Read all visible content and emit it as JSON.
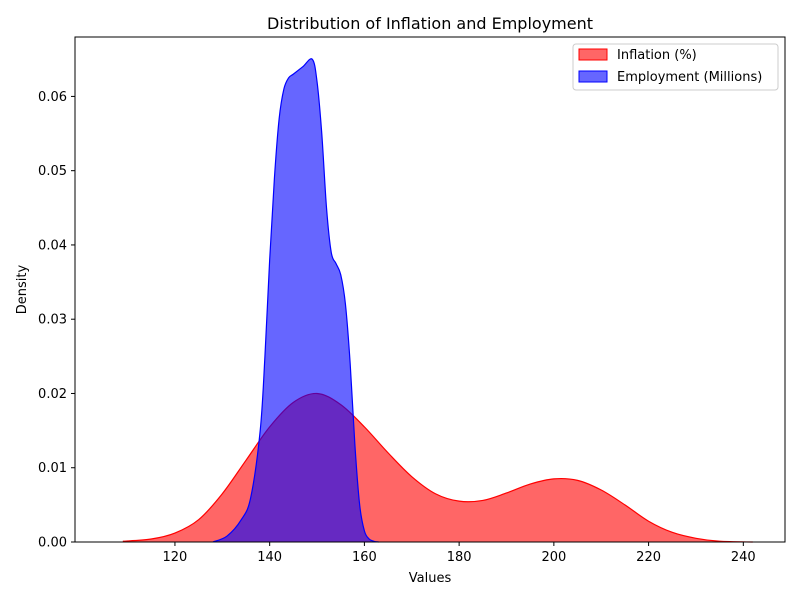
{
  "chart_data": {
    "type": "area",
    "title": "Distribution of Inflation and Employment",
    "xlabel": "Values",
    "ylabel": "Density",
    "xlim": [
      98.9,
      248.8
    ],
    "ylim": [
      0,
      0.068
    ],
    "xticks": [
      120,
      140,
      160,
      180,
      200,
      220,
      240
    ],
    "yticks": [
      0.0,
      0.01,
      0.02,
      0.03,
      0.04,
      0.05,
      0.06
    ],
    "grid": false,
    "legend_position": "top-right",
    "series": [
      {
        "name": "Inflation (%)",
        "color": "#ff0000",
        "fill_opacity": 0.6,
        "x": [
          109,
          115,
          120,
          125,
          130,
          135,
          140,
          145,
          150,
          155,
          160,
          165,
          170,
          175,
          180,
          185,
          190,
          195,
          200,
          205,
          210,
          215,
          220,
          225,
          230,
          235,
          242
        ],
        "y": [
          0.0001,
          0.0004,
          0.0012,
          0.003,
          0.0065,
          0.011,
          0.0155,
          0.0188,
          0.02,
          0.0185,
          0.0155,
          0.012,
          0.0088,
          0.0065,
          0.0055,
          0.0056,
          0.0066,
          0.0078,
          0.0085,
          0.0083,
          0.007,
          0.005,
          0.0028,
          0.0013,
          0.0005,
          0.0001,
          0.0
        ]
      },
      {
        "name": "Employment (Millions)",
        "color": "#0000ff",
        "fill_opacity": 0.6,
        "x": [
          128,
          131,
          134,
          136,
          138,
          139,
          140,
          141,
          142,
          143,
          144,
          145,
          147,
          149,
          150,
          151,
          152,
          153,
          154,
          155,
          156,
          157,
          158,
          159,
          160,
          161,
          162,
          163
        ],
        "y": [
          0.0,
          0.0008,
          0.003,
          0.006,
          0.015,
          0.025,
          0.038,
          0.049,
          0.057,
          0.061,
          0.0625,
          0.063,
          0.064,
          0.065,
          0.062,
          0.055,
          0.045,
          0.039,
          0.0375,
          0.036,
          0.032,
          0.024,
          0.013,
          0.005,
          0.0015,
          0.0004,
          0.0001,
          0.0
        ]
      }
    ]
  }
}
